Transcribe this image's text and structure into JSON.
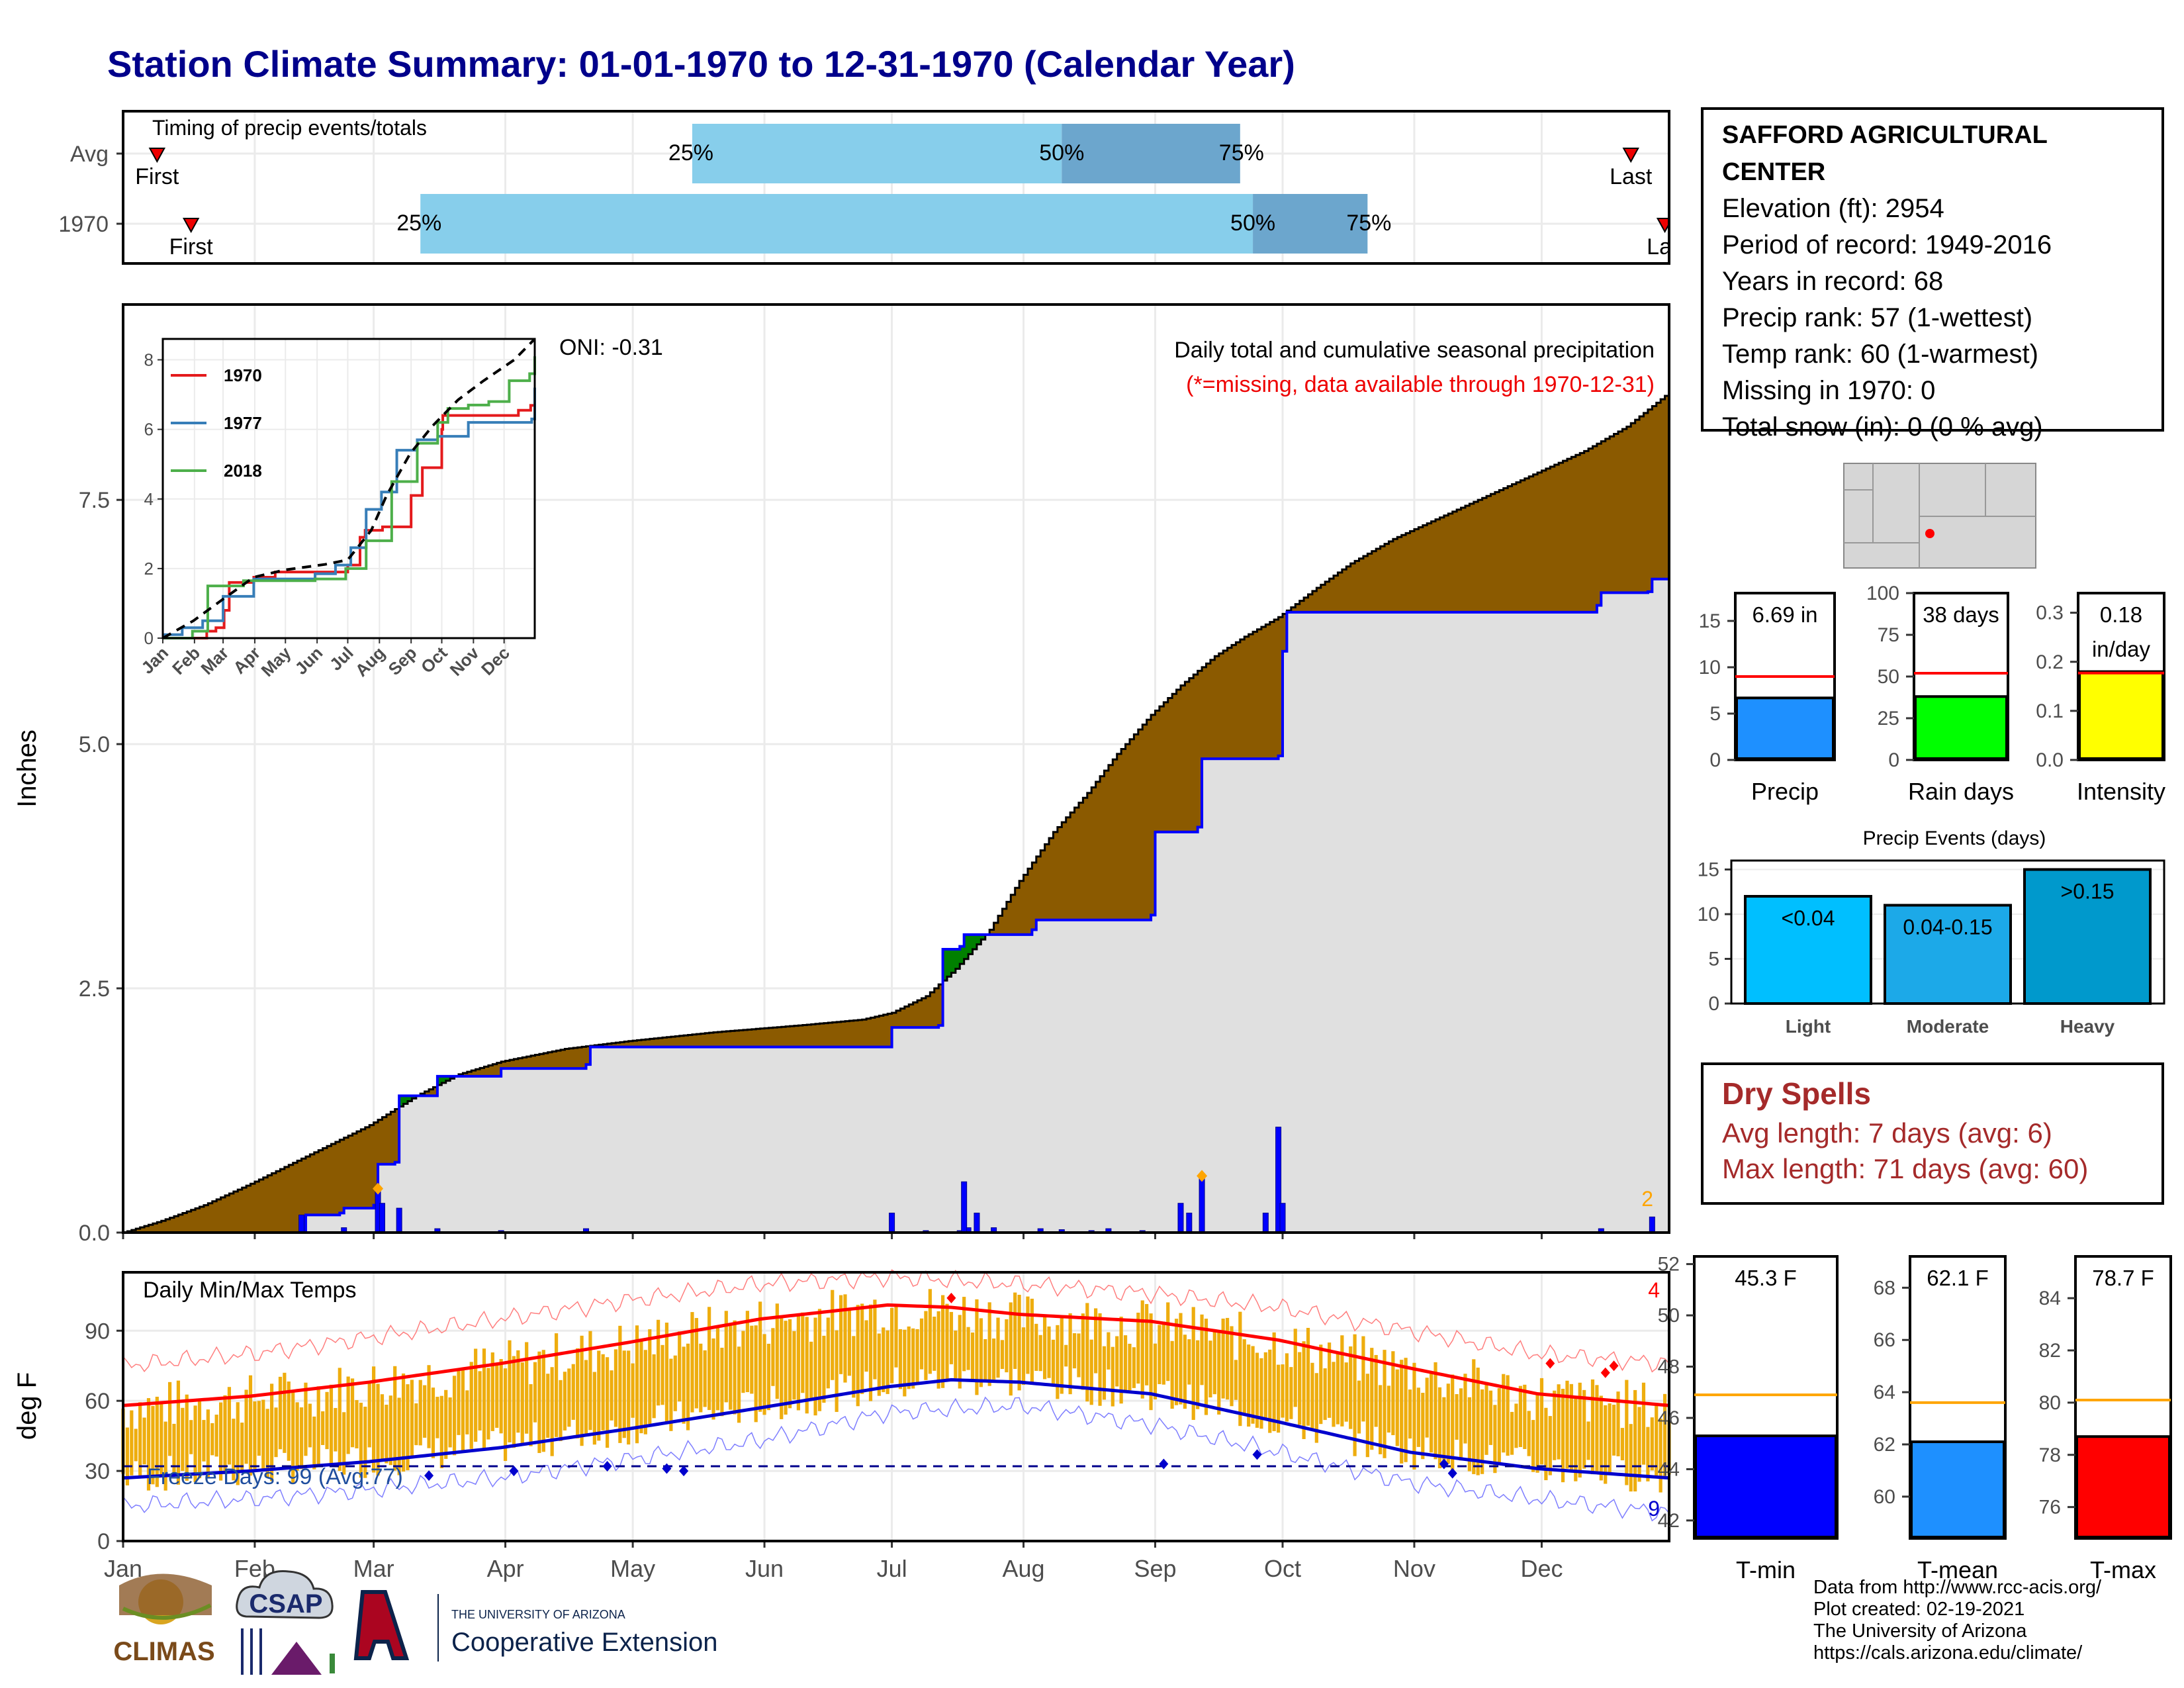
{
  "page": {
    "title": "Station Climate Summary: 01-01-1970 to 12-31-1970 (Calendar Year)"
  },
  "station": {
    "name": "SAFFORD AGRICULTURAL CENTER",
    "elevation": "Elevation (ft): 2954",
    "period": "Period of record: 1949-2016",
    "years": "Years in record: 68",
    "precip_rank": "Precip rank: 57 (1-wettest)",
    "temp_rank": "Temp rank: 60 (1-warmest)",
    "missing": "Missing in 1970: 0",
    "snow": "Total snow (in): 0 (0 % avg)"
  },
  "dry_spells": {
    "title": "Dry Spells",
    "avg": "Avg length: 7 days (avg: 6)",
    "max": "Max length: 71 days (avg: 60)"
  },
  "credits": {
    "line1": "Data from http://www.rcc-acis.org/",
    "line2": "Plot created: 02-19-2021",
    "line3": "The University of Arizona",
    "line4": "https://cals.arizona.edu/climate/"
  },
  "logos": {
    "climas": "CLIMAS",
    "csap": "CSAP",
    "ua_small": "THE UNIVERSITY OF ARIZONA",
    "ua_big": "Cooperative Extension"
  },
  "months": [
    "Jan",
    "Feb",
    "Mar",
    "Apr",
    "May",
    "Jun",
    "Jul",
    "Aug",
    "Sep",
    "Oct",
    "Nov",
    "Dec"
  ],
  "colors": {
    "title": "#00008B",
    "brown": "#8B5A00",
    "gray_fill": "#E0E0E0",
    "blue": "#0000FF",
    "green": "#008000",
    "light_blue": "#87CEEB",
    "mid_blue": "#6CA6CD",
    "orange": "#EEAD0E",
    "red": "#FF0000",
    "drybrown": "#A52A2A"
  },
  "chart_data": [
    {
      "type": "bar",
      "id": "timing",
      "title": "Timing of precip events/totals",
      "rows": [
        {
          "label": "Avg",
          "first": "01-09",
          "p25": "05-15",
          "p50": "08-10",
          "p75": "09-21",
          "last": "12-22",
          "labels": {
            "first": "First",
            "p25": "25%",
            "p50": "50%",
            "p75": "75%",
            "last": "Last"
          }
        },
        {
          "label": "1970",
          "first": "01-17",
          "p25": "03-12",
          "p50": "09-24",
          "p75": "10-21",
          "last": "12-30",
          "labels": {
            "first": "First",
            "p25": "25%",
            "p50": "50%",
            "p75": "75%",
            "last": "Las"
          }
        }
      ]
    },
    {
      "type": "area",
      "id": "precip",
      "title": "Daily total and cumulative seasonal precipitation",
      "subtitle": "(*=missing, data available through 1970-12-31)",
      "oni": "ONI: -0.31",
      "ylabel": "Inches",
      "ylim": [
        0,
        9.5
      ],
      "yticks": [
        0,
        2.5,
        5,
        7.5
      ],
      "ytick_labels": [
        "0.0",
        "2.5",
        "5.0",
        "7.5"
      ],
      "corner_label": "2",
      "avg_cumulative": [
        [
          1,
          0
        ],
        [
          10,
          0.12
        ],
        [
          20,
          0.28
        ],
        [
          31,
          0.5
        ],
        [
          45,
          0.8
        ],
        [
          59,
          1.1
        ],
        [
          70,
          1.4
        ],
        [
          80,
          1.62
        ],
        [
          90,
          1.75
        ],
        [
          105,
          1.88
        ],
        [
          120,
          1.96
        ],
        [
          140,
          2.05
        ],
        [
          160,
          2.12
        ],
        [
          175,
          2.18
        ],
        [
          182,
          2.25
        ],
        [
          190,
          2.42
        ],
        [
          197,
          2.7
        ],
        [
          205,
          3.1
        ],
        [
          212,
          3.6
        ],
        [
          220,
          4.1
        ],
        [
          228,
          4.5
        ],
        [
          235,
          4.9
        ],
        [
          243,
          5.3
        ],
        [
          250,
          5.6
        ],
        [
          258,
          5.9
        ],
        [
          265,
          6.1
        ],
        [
          273,
          6.3
        ],
        [
          282,
          6.6
        ],
        [
          290,
          6.85
        ],
        [
          300,
          7.1
        ],
        [
          315,
          7.4
        ],
        [
          330,
          7.7
        ],
        [
          345,
          8.0
        ],
        [
          355,
          8.25
        ],
        [
          365,
          8.6
        ]
      ],
      "year_cumulative": [
        [
          1,
          0
        ],
        [
          43,
          0
        ],
        [
          44,
          0.18
        ],
        [
          52,
          0.2
        ],
        [
          53,
          0.25
        ],
        [
          60,
          0.28
        ],
        [
          61,
          0.7
        ],
        [
          65,
          0.72
        ],
        [
          66,
          1.15
        ],
        [
          66,
          1.4
        ],
        [
          75,
          1.6
        ],
        [
          90,
          1.68
        ],
        [
          110,
          1.72
        ],
        [
          111,
          1.9
        ],
        [
          181,
          1.9
        ],
        [
          182,
          2.1
        ],
        [
          193,
          2.12
        ],
        [
          194,
          2.9
        ],
        [
          198,
          2.93
        ],
        [
          199,
          3.05
        ],
        [
          215,
          3.1
        ],
        [
          216,
          3.2
        ],
        [
          243,
          3.25
        ],
        [
          244,
          4.1
        ],
        [
          254,
          4.15
        ],
        [
          255,
          4.85
        ],
        [
          273,
          4.88
        ],
        [
          274,
          5.95
        ],
        [
          275,
          6.35
        ],
        [
          348,
          6.42
        ],
        [
          349,
          6.55
        ],
        [
          360,
          6.56
        ],
        [
          361,
          6.69
        ],
        [
          365,
          6.69
        ]
      ],
      "daily_bars": [
        [
          43,
          0.18
        ],
        [
          53,
          0.05
        ],
        [
          61,
          0.42
        ],
        [
          62,
          0.3
        ],
        [
          66,
          0.25
        ],
        [
          75,
          0.04
        ],
        [
          90,
          0.02
        ],
        [
          110,
          0.04
        ],
        [
          182,
          0.2
        ],
        [
          190,
          0.02
        ],
        [
          198,
          0.02
        ],
        [
          200,
          0.05
        ],
        [
          199,
          0.52
        ],
        [
          202,
          0.2
        ],
        [
          206,
          0.05
        ],
        [
          217,
          0.04
        ],
        [
          222,
          0.03
        ],
        [
          229,
          0.02
        ],
        [
          233,
          0.04
        ],
        [
          241,
          0.02
        ],
        [
          250,
          0.3
        ],
        [
          252,
          0.2
        ],
        [
          255,
          0.6
        ],
        [
          270,
          0.2
        ],
        [
          273,
          1.08
        ],
        [
          274,
          0.3
        ],
        [
          349,
          0.04
        ],
        [
          361,
          0.16
        ]
      ],
      "series": [
        {
          "name": "Avg cumulative"
        },
        {
          "name": "1970 cumulative"
        }
      ]
    },
    {
      "type": "line",
      "id": "inset",
      "yticks": [
        0,
        2,
        4,
        6,
        8
      ],
      "xlabels": [
        "Jan",
        "Feb",
        "Mar",
        "Apr",
        "May",
        "Jun",
        "Jul",
        "Aug",
        "Sep",
        "Oct",
        "Nov",
        "Dec"
      ],
      "series": [
        {
          "name": "1970",
          "color": "#E41A1C",
          "points": [
            [
              1,
              0
            ],
            [
              44,
              0.2
            ],
            [
              53,
              0.3
            ],
            [
              61,
              0.8
            ],
            [
              66,
              1.6
            ],
            [
              90,
              1.75
            ],
            [
              111,
              1.9
            ],
            [
              182,
              2.1
            ],
            [
              194,
              2.9
            ],
            [
              199,
              3.1
            ],
            [
              216,
              3.2
            ],
            [
              244,
              4.1
            ],
            [
              255,
              4.9
            ],
            [
              274,
              6.0
            ],
            [
              275,
              6.4
            ],
            [
              349,
              6.55
            ],
            [
              361,
              6.69
            ],
            [
              365,
              6.9
            ]
          ]
        },
        {
          "name": "1977",
          "color": "#377EB8",
          "points": [
            [
              1,
              0.1
            ],
            [
              20,
              0.3
            ],
            [
              40,
              0.5
            ],
            [
              60,
              1.2
            ],
            [
              90,
              1.7
            ],
            [
              150,
              1.85
            ],
            [
              170,
              2.1
            ],
            [
              185,
              2.6
            ],
            [
              200,
              3.7
            ],
            [
              215,
              4.2
            ],
            [
              230,
              5.4
            ],
            [
              250,
              5.7
            ],
            [
              270,
              5.8
            ],
            [
              300,
              6.2
            ],
            [
              340,
              6.2
            ],
            [
              362,
              6.3
            ],
            [
              365,
              7.2
            ]
          ]
        },
        {
          "name": "2018",
          "color": "#4DAF4A",
          "points": [
            [
              1,
              0
            ],
            [
              30,
              0.2
            ],
            [
              45,
              1.5
            ],
            [
              70,
              1.5
            ],
            [
              80,
              1.65
            ],
            [
              150,
              1.7
            ],
            [
              180,
              2.0
            ],
            [
              200,
              2.8
            ],
            [
              225,
              4.5
            ],
            [
              250,
              5.6
            ],
            [
              270,
              6.2
            ],
            [
              280,
              6.6
            ],
            [
              300,
              6.7
            ],
            [
              320,
              6.8
            ],
            [
              340,
              7.4
            ],
            [
              360,
              7.6
            ],
            [
              365,
              8.1
            ]
          ]
        },
        {
          "name": "Avg",
          "color": "#000000",
          "points": [
            [
              1,
              0
            ],
            [
              31,
              0.5
            ],
            [
              59,
              1.1
            ],
            [
              90,
              1.75
            ],
            [
              120,
              1.96
            ],
            [
              160,
              2.12
            ],
            [
              182,
              2.25
            ],
            [
              205,
              3.1
            ],
            [
              220,
              4.1
            ],
            [
              243,
              5.3
            ],
            [
              265,
              6.1
            ],
            [
              290,
              6.85
            ],
            [
              315,
              7.4
            ],
            [
              345,
              8.0
            ],
            [
              365,
              8.6
            ]
          ]
        }
      ]
    },
    {
      "type": "bar",
      "id": "temps",
      "title": "Daily Min/Max Temps",
      "ylabel": "deg F",
      "ylim": [
        0,
        115
      ],
      "yticks": [
        0,
        30,
        60,
        90
      ],
      "freeze_label": "Freeze Days: 99 (Avg:77)",
      "corner_top": "4",
      "corner_bottom": "9",
      "normal_max": [
        [
          1,
          58
        ],
        [
          31,
          62
        ],
        [
          59,
          68
        ],
        [
          90,
          76
        ],
        [
          120,
          85
        ],
        [
          151,
          95
        ],
        [
          181,
          101
        ],
        [
          196,
          100
        ],
        [
          212,
          97
        ],
        [
          243,
          94
        ],
        [
          273,
          86
        ],
        [
          304,
          74
        ],
        [
          334,
          63
        ],
        [
          365,
          58
        ]
      ],
      "normal_min": [
        [
          1,
          27
        ],
        [
          31,
          30
        ],
        [
          59,
          34
        ],
        [
          90,
          40
        ],
        [
          120,
          48
        ],
        [
          151,
          57
        ],
        [
          181,
          66
        ],
        [
          196,
          69
        ],
        [
          212,
          68
        ],
        [
          243,
          63
        ],
        [
          273,
          51
        ],
        [
          304,
          38
        ],
        [
          334,
          31
        ],
        [
          365,
          27
        ]
      ],
      "record_max": [
        [
          1,
          75
        ],
        [
          31,
          80
        ],
        [
          59,
          87
        ],
        [
          90,
          95
        ],
        [
          120,
          103
        ],
        [
          151,
          110
        ],
        [
          181,
          113
        ],
        [
          212,
          110
        ],
        [
          243,
          106
        ],
        [
          273,
          100
        ],
        [
          304,
          90
        ],
        [
          334,
          80
        ],
        [
          365,
          76
        ]
      ],
      "record_min": [
        [
          1,
          15
        ],
        [
          31,
          18
        ],
        [
          59,
          22
        ],
        [
          90,
          27
        ],
        [
          120,
          35
        ],
        [
          151,
          43
        ],
        [
          181,
          55
        ],
        [
          212,
          58
        ],
        [
          243,
          50
        ],
        [
          273,
          38
        ],
        [
          304,
          25
        ],
        [
          334,
          18
        ],
        [
          365,
          12
        ]
      ],
      "freeze_line": 32
    },
    {
      "type": "bar",
      "id": "mini_precip",
      "xlabel": "Precip",
      "value": 6.69,
      "value_label": "6.69 in",
      "avg": 9.0,
      "yticks": [
        0,
        5,
        10,
        15
      ],
      "ylim": [
        0,
        18
      ],
      "color": "#1E90FF"
    },
    {
      "type": "bar",
      "id": "mini_raindays",
      "xlabel": "Rain days",
      "value": 38,
      "value_label": "38 days",
      "avg": 52,
      "yticks": [
        0,
        25,
        50,
        75,
        100
      ],
      "ylim": [
        0,
        100
      ],
      "color": "#00FF00"
    },
    {
      "type": "bar",
      "id": "mini_intensity",
      "xlabel": "Intensity",
      "value": 0.18,
      "value_label": "0.18",
      "value_label2": "in/day",
      "avg": 0.177,
      "yticks": [
        0.0,
        0.1,
        0.2,
        0.3
      ],
      "ytick_labels": [
        "0.0",
        "0.1",
        "0.2",
        "0.3"
      ],
      "ylim": [
        0,
        0.34
      ],
      "color": "#FFFF00"
    },
    {
      "type": "bar",
      "id": "events",
      "title": "Precip Events (days)",
      "categories": [
        "Light",
        "Moderate",
        "Heavy"
      ],
      "values": [
        12,
        11,
        15
      ],
      "bar_labels": [
        "<0.04",
        "0.04-0.15",
        ">0.15"
      ],
      "colors": [
        "#00BFFF",
        "#1CA9E8",
        "#0099CC"
      ],
      "yticks": [
        0,
        5,
        10,
        15
      ],
      "ylim": [
        0,
        16
      ]
    },
    {
      "type": "bar",
      "id": "mini_tmin",
      "xlabel": "T-min",
      "value": 45.3,
      "value_label": "45.3 F",
      "avg": 46.9,
      "yticks": [
        42,
        44,
        46,
        48,
        50,
        52
      ],
      "ylim": [
        41.3,
        52.3
      ],
      "color": "#0000FF"
    },
    {
      "type": "bar",
      "id": "mini_tmean",
      "xlabel": "T-mean",
      "value": 62.1,
      "value_label": "62.1 F",
      "avg": 63.6,
      "yticks": [
        60,
        62,
        64,
        66,
        68
      ],
      "ylim": [
        58.4,
        69.2
      ],
      "color": "#1E90FF"
    },
    {
      "type": "bar",
      "id": "mini_tmax",
      "xlabel": "T-max",
      "value": 78.7,
      "value_label": "78.7 F",
      "avg": 80.1,
      "yticks": [
        76,
        78,
        80,
        82,
        84
      ],
      "ylim": [
        74.8,
        85.6
      ],
      "color": "#FF0000"
    }
  ]
}
